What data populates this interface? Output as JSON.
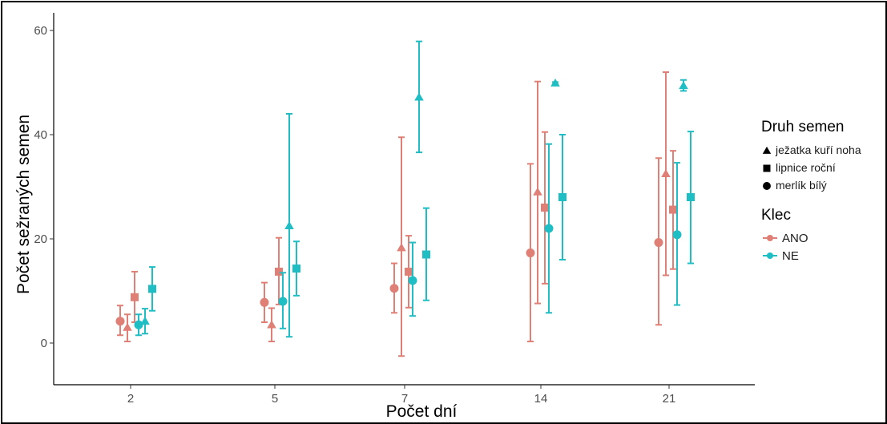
{
  "chart_data": {
    "type": "scatter",
    "xlabel": "Počet dní",
    "ylabel": "Počet sežraných semen",
    "ylim": [
      -8,
      64
    ],
    "yticks": [
      0,
      20,
      40,
      60
    ],
    "categories": [
      "2",
      "5",
      "7",
      "14",
      "21"
    ],
    "grid": false,
    "legend_position": "right",
    "legend_shape": {
      "title": "Druh  semen",
      "items": [
        {
          "label": "ježatka kuří noha",
          "shape": "triangle"
        },
        {
          "label": "lipnice roční",
          "shape": "square"
        },
        {
          "label": "merlík bílý",
          "shape": "circle"
        }
      ]
    },
    "legend_color": {
      "title": "Klec",
      "items": [
        {
          "label": "ANO",
          "color": "#e07f75"
        },
        {
          "label": "NE",
          "color": "#1fbec4"
        }
      ]
    },
    "series": [
      {
        "group": "ANO",
        "species": "merlík bílý",
        "color": "#e07f75",
        "shape": "circle",
        "values": [
          4.2,
          7.8,
          10.5,
          17.3,
          19.3
        ],
        "lower": [
          1.5,
          4.0,
          5.8,
          0.3,
          3.5
        ],
        "upper": [
          7.2,
          11.6,
          15.3,
          34.4,
          35.5
        ]
      },
      {
        "group": "ANO",
        "species": "ježatka kuří noha",
        "color": "#e07f75",
        "shape": "triangle",
        "values": [
          3.0,
          3.5,
          18.3,
          29.0,
          32.5
        ],
        "lower": [
          0.3,
          0.3,
          -2.5,
          7.6,
          13.0
        ],
        "upper": [
          5.5,
          6.7,
          39.5,
          50.2,
          52.0
        ]
      },
      {
        "group": "ANO",
        "species": "lipnice roční",
        "color": "#e07f75",
        "shape": "square",
        "values": [
          8.8,
          13.7,
          13.7,
          26.0,
          25.6
        ],
        "lower": [
          4.0,
          7.4,
          6.8,
          11.4,
          14.2
        ],
        "upper": [
          13.7,
          20.2,
          20.6,
          40.5,
          36.9
        ]
      },
      {
        "group": "NE",
        "species": "merlík bílý",
        "color": "#1fbec4",
        "shape": "circle",
        "values": [
          3.5,
          8.0,
          12.0,
          22.0,
          20.8
        ],
        "lower": [
          1.5,
          2.8,
          5.2,
          5.8,
          7.3
        ],
        "upper": [
          5.5,
          13.5,
          19.3,
          38.2,
          34.6
        ]
      },
      {
        "group": "NE",
        "species": "ježatka kuří noha",
        "color": "#1fbec4",
        "shape": "triangle",
        "values": [
          4.2,
          22.5,
          47.2,
          49.9,
          49.4
        ],
        "lower": [
          1.8,
          1.2,
          36.6,
          49.7,
          48.4
        ],
        "upper": [
          6.6,
          44.0,
          57.9,
          50.1,
          50.5
        ]
      },
      {
        "group": "NE",
        "species": "lipnice roční",
        "color": "#1fbec4",
        "shape": "square",
        "values": [
          10.4,
          14.3,
          17.0,
          28.0,
          28.0
        ],
        "lower": [
          6.2,
          9.1,
          8.2,
          16.0,
          15.3
        ],
        "upper": [
          14.6,
          19.5,
          25.9,
          40.0,
          40.6
        ]
      }
    ]
  }
}
